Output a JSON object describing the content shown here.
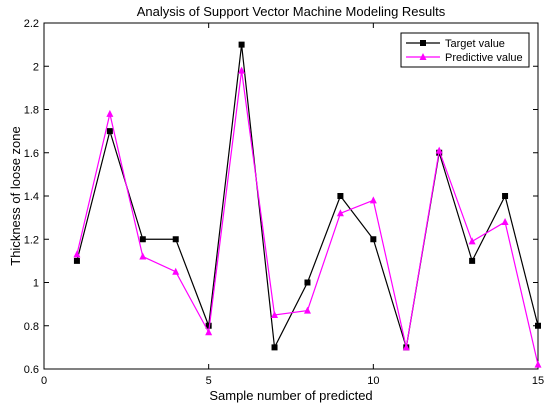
{
  "chart_data": {
    "type": "line",
    "title": "Analysis of Support Vector Machine Modeling Results",
    "xlabel": "Sample number of predicted",
    "ylabel": "Thickness of loose zone",
    "xlim": [
      0,
      15
    ],
    "ylim": [
      0.6,
      2.2
    ],
    "x_ticks": [
      0,
      5,
      10,
      15
    ],
    "y_ticks": [
      0.6,
      0.8,
      1,
      1.2,
      1.4,
      1.6,
      1.8,
      2,
      2.2
    ],
    "x_tick_labels": [
      "0",
      "5",
      "10",
      "15"
    ],
    "y_tick_labels": [
      "0.6",
      "0.8",
      "1",
      "1.2",
      "1.4",
      "1.6",
      "1.8",
      "2",
      "2.2"
    ],
    "grid": false,
    "legend_position": "top-right",
    "x": [
      1,
      2,
      3,
      4,
      5,
      6,
      7,
      8,
      9,
      10,
      11,
      12,
      13,
      14,
      15
    ],
    "series": [
      {
        "name": "Target value",
        "color": "#000000",
        "marker": "square",
        "values": [
          1.1,
          1.7,
          1.2,
          1.2,
          0.8,
          2.1,
          0.7,
          1.0,
          1.4,
          1.2,
          0.7,
          1.6,
          1.1,
          1.4,
          0.8
        ]
      },
      {
        "name": "Predictive value",
        "color": "#ff00ff",
        "marker": "triangle",
        "values": [
          1.13,
          1.78,
          1.12,
          1.05,
          0.77,
          1.98,
          0.85,
          0.87,
          1.32,
          1.38,
          0.7,
          1.61,
          1.19,
          1.28,
          0.62
        ]
      }
    ]
  }
}
